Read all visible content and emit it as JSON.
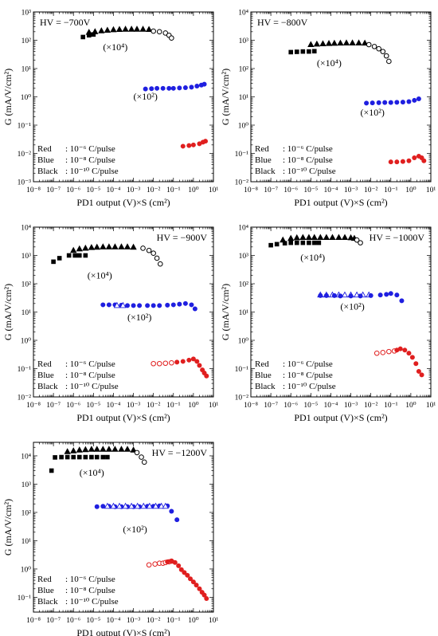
{
  "chart_data": [
    {
      "type": "scatter",
      "title": "HV = −700V",
      "xlabel": "PD1 output (V)×S (cm²)",
      "ylabel": "G (mA/V/cm²)",
      "x_scale": "log",
      "y_scale": "log",
      "xlim": [
        1e-08,
        10
      ],
      "ylim": [
        0.001,
        1000
      ],
      "x_tick_labels": [
        "10⁻⁸",
        "10⁻⁷",
        "10⁻⁶",
        "10⁻⁵",
        "10⁻⁴",
        "10⁻³",
        "10⁻²",
        "10⁻¹",
        "10⁰",
        "10¹"
      ],
      "y_tick_labels": [
        "10⁻³",
        "10⁻²",
        "10⁻¹",
        "10⁰",
        "10¹",
        "10²",
        "10³"
      ],
      "legend": [
        {
          "label": "Red",
          "text": ": 10⁻⁶  C/pulse"
        },
        {
          "label": "Blue",
          "text": ": 10⁻⁸  C/pulse"
        },
        {
          "label": "Black",
          "text": ": 10⁻¹⁰ C/pulse"
        }
      ],
      "legend_position": "lower-left",
      "annotations": [
        {
          "text": "(×10⁴)",
          "x": 3e-05,
          "y": 45
        },
        {
          "text": "(×10²)",
          "x": 0.001,
          "y": 0.8
        }
      ],
      "series": [
        {
          "color": "#000000",
          "marker": "square",
          "x": [
            3e-06,
            6e-06,
            1e-05
          ],
          "y": [
            130,
            150,
            160
          ]
        },
        {
          "color": "#000000",
          "marker": "triangle",
          "x": [
            6e-06,
            1.2e-05,
            2.5e-05,
            5e-05,
            0.0001,
            0.0002,
            0.0004,
            0.0008,
            0.0015,
            0.003,
            0.006
          ],
          "y": [
            190,
            200,
            215,
            225,
            235,
            240,
            245,
            245,
            245,
            245,
            240
          ]
        },
        {
          "color": "#000000",
          "marker": "circle-open",
          "x": [
            0.01,
            0.02,
            0.04,
            0.06,
            0.08
          ],
          "y": [
            210,
            200,
            180,
            150,
            120
          ]
        },
        {
          "color": "#1f1fe0",
          "marker": "circle",
          "x": [
            0.004,
            0.008,
            0.015,
            0.03,
            0.06,
            0.1,
            0.2,
            0.4,
            0.8,
            1.5,
            2.5,
            3.5
          ],
          "y": [
            1.9,
            1.95,
            2.0,
            2.0,
            2.0,
            2.0,
            2.05,
            2.1,
            2.2,
            2.4,
            2.6,
            2.8
          ]
        },
        {
          "color": "#e01f1f",
          "marker": "circle",
          "x": [
            0.3,
            0.6,
            1.0,
            2.0,
            3.0,
            4.0
          ],
          "y": [
            0.018,
            0.019,
            0.02,
            0.022,
            0.025,
            0.027
          ]
        }
      ]
    },
    {
      "type": "scatter",
      "title": "HV = −800V",
      "xlabel": "PD1 output (V)×S (cm²)",
      "ylabel": "G (mA/V/cm²)",
      "x_scale": "log",
      "y_scale": "log",
      "xlim": [
        1e-08,
        10
      ],
      "ylim": [
        0.01,
        10000
      ],
      "x_tick_labels": [
        "10⁻⁸",
        "10⁻⁷",
        "10⁻⁶",
        "10⁻⁵",
        "10⁻⁴",
        "10⁻³",
        "10⁻²",
        "10⁻¹",
        "10⁰",
        "10¹"
      ],
      "y_tick_labels": [
        "10⁻²",
        "10⁻¹",
        "10⁰",
        "10¹",
        "10²",
        "10³",
        "10⁴"
      ],
      "legend": [
        {
          "label": "Red",
          "text": ": 10⁻⁶  C/pulse"
        },
        {
          "label": "Blue",
          "text": ": 10⁻⁸  C/pulse"
        },
        {
          "label": "Black",
          "text": ": 10⁻¹⁰ C/pulse"
        }
      ],
      "legend_position": "lower-left",
      "annotations": [
        {
          "text": "(×10⁴)",
          "x": 2e-05,
          "y": 120
        },
        {
          "text": "(×10²)",
          "x": 0.003,
          "y": 2.2
        }
      ],
      "series": [
        {
          "color": "#000000",
          "marker": "square",
          "x": [
            1e-06,
            2e-06,
            4e-06,
            8e-06,
            1.5e-05
          ],
          "y": [
            380,
            390,
            400,
            400,
            410
          ]
        },
        {
          "color": "#000000",
          "marker": "triangle",
          "x": [
            1e-05,
            2e-05,
            4e-05,
            8e-05,
            0.00015,
            0.0003,
            0.0006,
            0.0012,
            0.0025,
            0.005
          ],
          "y": [
            700,
            730,
            750,
            770,
            780,
            790,
            800,
            800,
            800,
            790
          ]
        },
        {
          "color": "#000000",
          "marker": "circle-open",
          "x": [
            0.008,
            0.015,
            0.025,
            0.04,
            0.06,
            0.08
          ],
          "y": [
            700,
            600,
            500,
            400,
            280,
            180
          ]
        },
        {
          "color": "#1f1fe0",
          "marker": "circle",
          "x": [
            0.006,
            0.012,
            0.025,
            0.05,
            0.1,
            0.2,
            0.4,
            0.8,
            1.5,
            2.5
          ],
          "y": [
            6,
            6.1,
            6.2,
            6.3,
            6.3,
            6.4,
            6.5,
            6.8,
            7.5,
            8.5
          ]
        },
        {
          "color": "#e01f1f",
          "marker": "circle",
          "x": [
            0.1,
            0.2,
            0.4,
            0.8,
            1.5,
            2.5,
            3.5,
            4.5
          ],
          "y": [
            0.05,
            0.05,
            0.052,
            0.055,
            0.07,
            0.08,
            0.07,
            0.055
          ]
        }
      ]
    },
    {
      "type": "scatter",
      "title": "HV = −900V",
      "xlabel": "PD1 output (V)×S (cm²)",
      "ylabel": "G (mA/V/cm²)",
      "x_scale": "log",
      "y_scale": "log",
      "xlim": [
        1e-08,
        10
      ],
      "ylim": [
        0.01,
        10000
      ],
      "x_tick_labels": [
        "10⁻⁸",
        "10⁻⁷",
        "10⁻⁶",
        "10⁻⁵",
        "10⁻⁴",
        "10⁻³",
        "10⁻²",
        "10⁻¹",
        "10⁰",
        "10¹"
      ],
      "y_tick_labels": [
        "10⁻²",
        "10⁻¹",
        "10⁰",
        "10¹",
        "10²",
        "10³",
        "10⁴"
      ],
      "legend": [
        {
          "label": "Red",
          "text": ": 10⁻⁶  C/pulse"
        },
        {
          "label": "Blue",
          "text": ": 10⁻⁸  C/pulse"
        },
        {
          "label": "Black",
          "text": ": 10⁻¹⁰ C/pulse"
        }
      ],
      "legend_position": "lower-left",
      "annotations": [
        {
          "text": "(×10⁴)",
          "x": 5e-06,
          "y": 150
        },
        {
          "text": "(×10²)",
          "x": 0.0005,
          "y": 5
        }
      ],
      "series": [
        {
          "color": "#000000",
          "marker": "square",
          "x": [
            1e-07,
            2e-07,
            6e-07,
            1.2e-06,
            2e-06,
            4e-06
          ],
          "y": [
            600,
            800,
            1000,
            1000,
            1000,
            1000
          ]
        },
        {
          "color": "#000000",
          "marker": "triangle",
          "x": [
            1e-06,
            2e-06,
            4e-06,
            8e-06,
            1.5e-05,
            3e-05,
            6e-05,
            0.00012,
            0.00025,
            0.0005,
            0.001
          ],
          "y": [
            1500,
            1700,
            1800,
            1900,
            1950,
            2000,
            2000,
            2000,
            2000,
            2000,
            1950
          ]
        },
        {
          "color": "#000000",
          "marker": "circle-open",
          "x": [
            0.003,
            0.006,
            0.01,
            0.015,
            0.022
          ],
          "y": [
            1800,
            1500,
            1200,
            800,
            500
          ]
        },
        {
          "color": "#1f1fe0",
          "marker": "circle",
          "x": [
            3e-05,
            6e-05,
            0.00012,
            0.00025,
            0.0005,
            0.001,
            0.002,
            0.005,
            0.01,
            0.02,
            0.05,
            0.1,
            0.2,
            0.4,
            0.8,
            1.2
          ],
          "y": [
            18,
            18,
            18,
            17.5,
            17,
            17,
            17,
            17,
            17,
            17,
            17.5,
            18,
            19,
            20,
            18,
            13
          ]
        },
        {
          "color": "#1f1fe0",
          "marker": "triangle-open",
          "x": [
            0.00015,
            0.0003
          ],
          "y": [
            17,
            17
          ]
        },
        {
          "color": "#e01f1f",
          "marker": "circle-open",
          "x": [
            0.01,
            0.02,
            0.04,
            0.08
          ],
          "y": [
            0.15,
            0.15,
            0.155,
            0.16
          ]
        },
        {
          "color": "#e01f1f",
          "marker": "circle",
          "x": [
            0.15,
            0.3,
            0.6,
            1.0,
            1.5,
            2.0,
            2.8,
            3.5,
            4.5
          ],
          "y": [
            0.17,
            0.18,
            0.2,
            0.22,
            0.18,
            0.13,
            0.09,
            0.07,
            0.055
          ]
        }
      ]
    },
    {
      "type": "scatter",
      "title": "HV = −1000V",
      "xlabel": "PD1 output (V)×S (cm²)",
      "ylabel": "G (mA/V/cm²)",
      "x_scale": "log",
      "y_scale": "log",
      "xlim": [
        1e-08,
        10
      ],
      "ylim": [
        0.01,
        10000
      ],
      "x_tick_labels": [
        "10⁻⁸",
        "10⁻⁷",
        "10⁻⁶",
        "10⁻⁵",
        "10⁻⁴",
        "10⁻³",
        "10⁻²",
        "10⁻¹",
        "10⁰",
        "10¹"
      ],
      "y_tick_labels": [
        "10⁻²",
        "10⁻¹",
        "10⁰",
        "10¹",
        "10²",
        "10³",
        "10⁴"
      ],
      "legend": [
        {
          "label": "Red",
          "text": ": 10⁻⁶  C/pulse"
        },
        {
          "label": "Blue",
          "text": ": 10⁻⁸  C/pulse"
        },
        {
          "label": "Black",
          "text": ": 10⁻¹⁰ C/pulse"
        }
      ],
      "legend_position": "lower-left",
      "annotations": [
        {
          "text": "(×10⁴)",
          "x": 3e-06,
          "y": 650
        },
        {
          "text": "(×10²)",
          "x": 0.0003,
          "y": 12
        }
      ],
      "series": [
        {
          "color": "#000000",
          "marker": "square",
          "x": [
            1e-07,
            2e-07,
            5e-07,
            1e-06,
            2e-06,
            4e-06,
            8e-06,
            1.5e-05,
            2.5e-05
          ],
          "y": [
            2300,
            2500,
            2700,
            2800,
            2800,
            2800,
            2800,
            2800,
            2800
          ]
        },
        {
          "color": "#000000",
          "marker": "triangle",
          "x": [
            4e-07,
            1e-06,
            2e-06,
            4e-06,
            8e-06,
            1.5e-05,
            3e-05,
            6e-05,
            0.00012,
            0.00025,
            0.0005,
            0.001,
            0.0015
          ],
          "y": [
            3500,
            4000,
            4200,
            4300,
            4300,
            4300,
            4300,
            4300,
            4300,
            4300,
            4300,
            4200,
            4000
          ]
        },
        {
          "color": "#000000",
          "marker": "circle-open",
          "x": [
            0.002,
            0.003
          ],
          "y": [
            3500,
            2800
          ]
        },
        {
          "color": "#1f1fe0",
          "marker": "triangle-open",
          "x": [
            3e-05,
            6e-05,
            0.00012,
            0.00025,
            0.0005,
            0.001,
            0.002,
            0.004,
            0.008
          ],
          "y": [
            40,
            40,
            40,
            40,
            40,
            40,
            40,
            40,
            40
          ]
        },
        {
          "color": "#1f1fe0",
          "marker": "circle",
          "x": [
            3e-05,
            6e-05,
            0.00015,
            0.0003,
            0.001,
            0.003,
            0.01,
            0.03,
            0.06,
            0.1,
            0.2,
            0.35
          ],
          "y": [
            38,
            38,
            38,
            37,
            37,
            37,
            38,
            40,
            42,
            45,
            40,
            25
          ]
        },
        {
          "color": "#e01f1f",
          "marker": "circle-open",
          "x": [
            0.02,
            0.04,
            0.08,
            0.15
          ],
          "y": [
            0.35,
            0.37,
            0.4,
            0.42
          ]
        },
        {
          "color": "#e01f1f",
          "marker": "circle",
          "x": [
            0.2,
            0.3,
            0.5,
            0.8,
            1.2,
            1.8,
            2.5,
            3.5
          ],
          "y": [
            0.45,
            0.5,
            0.45,
            0.35,
            0.25,
            0.15,
            0.08,
            0.06
          ]
        }
      ]
    },
    {
      "type": "scatter",
      "title": "HV = −1200V",
      "xlabel": "PD1 output (V)×S (cm²)",
      "ylabel": "G (mA/V/cm²)",
      "x_scale": "log",
      "y_scale": "log",
      "xlim": [
        1e-08,
        10
      ],
      "ylim": [
        0.03,
        30000
      ],
      "x_tick_labels": [
        "10⁻⁸",
        "10⁻⁷",
        "10⁻⁶",
        "10⁻⁵",
        "10⁻⁴",
        "10⁻³",
        "10⁻²",
        "10⁻¹",
        "10⁰",
        "10¹"
      ],
      "y_tick_labels": [
        "10⁻¹",
        "10⁰",
        "10¹",
        "10²",
        "10³",
        "10⁴"
      ],
      "legend": [
        {
          "label": "Red",
          "text": ": 10⁻⁶  C/pulse"
        },
        {
          "label": "Blue",
          "text": ": 10⁻⁸  C/pulse"
        },
        {
          "label": "Black",
          "text": ": 10⁻¹⁰ C/pulse"
        }
      ],
      "legend_position": "lower-left",
      "annotations": [
        {
          "text": "(×10⁴)",
          "x": 2e-06,
          "y": 2000
        },
        {
          "text": "(×10²)",
          "x": 0.0003,
          "y": 20
        }
      ],
      "series": [
        {
          "color": "#000000",
          "marker": "square",
          "x": [
            8e-08,
            1.2e-07,
            2.5e-07,
            5e-07,
            1e-06,
            2e-06,
            4e-06,
            8e-06,
            1.5e-05,
            3e-05,
            5e-05
          ],
          "y": [
            3000,
            8800,
            9000,
            9000,
            9000,
            9000,
            9000,
            9000,
            9000,
            9000,
            9000
          ]
        },
        {
          "color": "#000000",
          "marker": "triangle",
          "x": [
            5e-07,
            1e-06,
            2e-06,
            4e-06,
            8e-06,
            1.5e-05,
            3e-05,
            6e-05,
            0.00012,
            0.00025,
            0.0005,
            0.001
          ],
          "y": [
            14000,
            15000,
            16000,
            16500,
            17000,
            17000,
            17000,
            17000,
            17000,
            17000,
            17000,
            16000
          ]
        },
        {
          "color": "#000000",
          "marker": "circle-open",
          "x": [
            0.0015,
            0.0025,
            0.0035
          ],
          "y": [
            13000,
            9000,
            6000
          ]
        },
        {
          "color": "#1f1fe0",
          "marker": "circle",
          "x": [
            1.5e-05,
            3e-05,
            6e-05,
            0.00012,
            0.00025,
            0.0005,
            0.001,
            0.002,
            0.005,
            0.01,
            0.02,
            0.05,
            0.08,
            0.15
          ],
          "y": [
            160,
            165,
            165,
            160,
            160,
            160,
            160,
            160,
            165,
            165,
            170,
            170,
            110,
            55
          ]
        },
        {
          "color": "#1f1fe0",
          "marker": "triangle-open",
          "x": [
            5e-05,
            0.0001,
            0.0002,
            0.0004,
            0.0008,
            0.0016,
            0.0032,
            0.0064,
            0.013,
            0.025,
            0.04
          ],
          "y": [
            165,
            165,
            165,
            165,
            165,
            165,
            165,
            165,
            165,
            165,
            165
          ]
        },
        {
          "color": "#e01f1f",
          "marker": "circle-open",
          "x": [
            0.006,
            0.012,
            0.02,
            0.03,
            0.04,
            0.06,
            0.08
          ],
          "y": [
            1.4,
            1.5,
            1.6,
            1.6,
            1.7,
            1.8,
            1.9
          ]
        },
        {
          "color": "#e01f1f",
          "marker": "circle",
          "x": [
            0.05,
            0.08,
            0.12,
            0.18,
            0.25,
            0.35,
            0.5,
            0.7,
            1.0,
            1.4,
            2.0,
            2.7,
            3.5,
            4.5
          ],
          "y": [
            1.8,
            1.9,
            1.7,
            1.3,
            0.95,
            0.75,
            0.6,
            0.45,
            0.35,
            0.27,
            0.2,
            0.15,
            0.12,
            0.09
          ]
        }
      ]
    }
  ]
}
